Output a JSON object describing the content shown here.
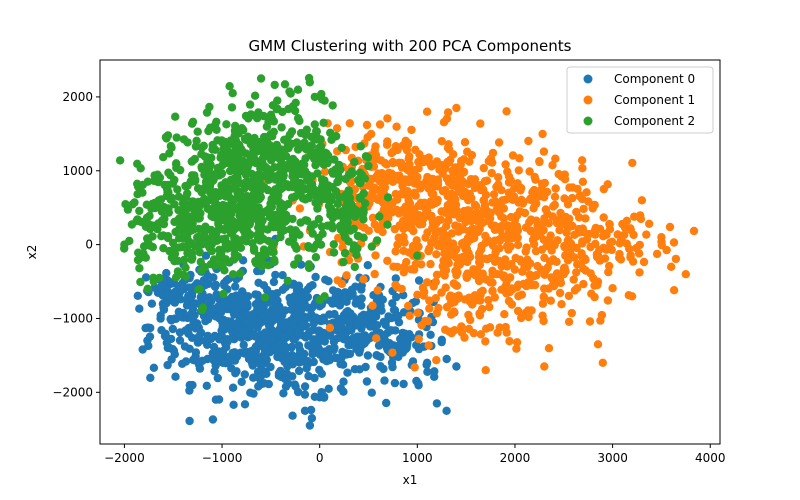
{
  "chart_data": {
    "type": "scatter",
    "title": "GMM Clustering with 200 PCA Components",
    "xlabel": "x1",
    "ylabel": "x2",
    "xlim": [
      -2250,
      4100
    ],
    "ylim": [
      -2700,
      2500
    ],
    "xticks": [
      -2000,
      -1000,
      0,
      1000,
      2000,
      3000,
      4000
    ],
    "xtick_labels": [
      "−2000",
      "−1000",
      "0",
      "1000",
      "2000",
      "3000",
      "4000"
    ],
    "yticks": [
      -2000,
      -1000,
      0,
      1000,
      2000
    ],
    "ytick_labels": [
      "−2000",
      "−1000",
      "0",
      "1000",
      "2000"
    ],
    "grid": false,
    "legend_position": "top-right",
    "series": [
      {
        "name": "Component 0",
        "color": "#1f77b4",
        "clusters": [
          {
            "cx": -900,
            "cy": -1100,
            "sx": 420,
            "sy": 380,
            "n": 360
          },
          {
            "cx": -300,
            "cy": -1300,
            "sx": 350,
            "sy": 420,
            "n": 260
          },
          {
            "cx": 300,
            "cy": -1050,
            "sx": 300,
            "sy": 330,
            "n": 170
          },
          {
            "cx": 800,
            "cy": -1300,
            "sx": 260,
            "sy": 380,
            "n": 90
          },
          {
            "cx": -1400,
            "cy": -650,
            "sx": 200,
            "sy": 170,
            "n": 70
          }
        ],
        "points": [
          {
            "x": -100,
            "y": -2450
          },
          {
            "x": -80,
            "y": -2350
          },
          {
            "x": -150,
            "y": -2250
          },
          {
            "x": 1300,
            "y": -2250
          },
          {
            "x": 1200,
            "y": -2150
          },
          {
            "x": 1400,
            "y": -1650
          },
          {
            "x": 1100,
            "y": -1600
          },
          {
            "x": 450,
            "y": -950
          },
          {
            "x": -1600,
            "y": -850
          },
          {
            "x": -1550,
            "y": -700
          }
        ]
      },
      {
        "name": "Component 1",
        "color": "#ff7f0e",
        "clusters": [
          {
            "cx": 800,
            "cy": 700,
            "sx": 450,
            "sy": 420,
            "n": 300
          },
          {
            "cx": 1500,
            "cy": 350,
            "sx": 480,
            "sy": 500,
            "n": 300
          },
          {
            "cx": 2200,
            "cy": 0,
            "sx": 500,
            "sy": 550,
            "n": 230
          },
          {
            "cx": 2900,
            "cy": 100,
            "sx": 420,
            "sy": 420,
            "n": 100
          },
          {
            "cx": 1500,
            "cy": -700,
            "sx": 500,
            "sy": 320,
            "n": 120
          }
        ],
        "points": [
          {
            "x": 3750,
            "y": -400
          },
          {
            "x": 3600,
            "y": -300
          },
          {
            "x": 3500,
            "y": 100
          },
          {
            "x": 3300,
            "y": 600
          },
          {
            "x": 2900,
            "y": -1600
          },
          {
            "x": 2300,
            "y": -1650
          },
          {
            "x": 1700,
            "y": -1700
          },
          {
            "x": 1400,
            "y": 1850
          },
          {
            "x": 1100,
            "y": 1800
          },
          {
            "x": 3200,
            "y": -700
          },
          {
            "x": 2850,
            "y": -1350
          }
        ]
      },
      {
        "name": "Component 2",
        "color": "#2ca02c",
        "clusters": [
          {
            "cx": -900,
            "cy": 900,
            "sx": 380,
            "sy": 420,
            "n": 320
          },
          {
            "cx": -300,
            "cy": 1300,
            "sx": 300,
            "sy": 400,
            "n": 200
          },
          {
            "cx": -1400,
            "cy": 300,
            "sx": 320,
            "sy": 380,
            "n": 220
          },
          {
            "cx": -700,
            "cy": 100,
            "sx": 400,
            "sy": 300,
            "n": 160
          },
          {
            "cx": 200,
            "cy": 500,
            "sx": 220,
            "sy": 350,
            "n": 120
          }
        ],
        "points": [
          {
            "x": -600,
            "y": 2250
          },
          {
            "x": -50,
            "y": 2000
          },
          {
            "x": 50,
            "y": 1950
          },
          {
            "x": -2000,
            "y": 0
          },
          {
            "x": -1950,
            "y": 50
          },
          {
            "x": -1700,
            "y": -500
          },
          {
            "x": 0,
            "y": -750
          },
          {
            "x": 50,
            "y": -700
          },
          {
            "x": 1000,
            "y": -150
          }
        ]
      }
    ]
  }
}
